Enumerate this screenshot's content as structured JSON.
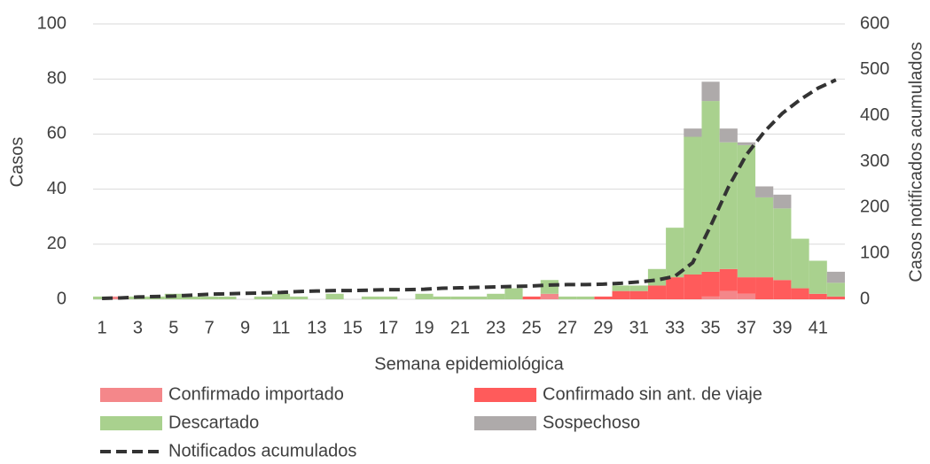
{
  "chart_data": {
    "type": "bar",
    "stacked": true,
    "x_label": "Semana epidemiológica",
    "y_label": "Casos",
    "y2_label": "Casos notificados acumulados",
    "categories": [
      1,
      null,
      3,
      null,
      5,
      null,
      7,
      null,
      9,
      null,
      11,
      null,
      13,
      null,
      15,
      null,
      17,
      null,
      19,
      null,
      21,
      null,
      23,
      null,
      25,
      null,
      27,
      null,
      29,
      null,
      31,
      null,
      33,
      null,
      35,
      null,
      37,
      null,
      39,
      null,
      41,
      null
    ],
    "series": [
      {
        "name": "Confirmado importado",
        "color": "#f4878a",
        "values": [
          0,
          1,
          0,
          0,
          0,
          0,
          0,
          0,
          0,
          0,
          0,
          0,
          0,
          0,
          0,
          0,
          0,
          0,
          0,
          0,
          0,
          0,
          0,
          0,
          0,
          2,
          0,
          0,
          0,
          0,
          0,
          0,
          0,
          0,
          1,
          3,
          2,
          0,
          0,
          0,
          0,
          0
        ]
      },
      {
        "name": "Confirmado sin ant. de viaje",
        "color": "#ff5b5b",
        "values": [
          0,
          0,
          0,
          0,
          0,
          0,
          0,
          0,
          0,
          0,
          0,
          0,
          0,
          0,
          0,
          0,
          0,
          0,
          0,
          0,
          0,
          0,
          0,
          0,
          1,
          0,
          0,
          0,
          1,
          3,
          3,
          5,
          8,
          9,
          9,
          8,
          6,
          8,
          7,
          4,
          2,
          1
        ]
      },
      {
        "name": "Descartado",
        "color": "#a9d18e",
        "values": [
          1,
          0,
          1,
          1,
          2,
          1,
          1,
          1,
          0,
          1,
          2,
          1,
          0,
          2,
          0,
          1,
          1,
          0,
          2,
          1,
          1,
          1,
          2,
          4,
          0,
          5,
          1,
          1,
          0,
          2,
          2,
          6,
          18,
          50,
          62,
          46,
          48,
          29,
          26,
          18,
          12,
          5
        ]
      },
      {
        "name": "Sospechoso",
        "color": "#aeaaaa",
        "values": [
          0,
          0,
          0,
          0,
          0,
          0,
          0,
          0,
          0,
          0,
          0,
          0,
          0,
          0,
          0,
          0,
          0,
          0,
          0,
          0,
          0,
          0,
          0,
          0,
          0,
          0,
          0,
          0,
          0,
          0,
          0,
          0,
          0,
          3,
          7,
          5,
          1,
          4,
          5,
          0,
          0,
          4
        ]
      },
      {
        "name": "Notificados acumulados",
        "color": "#333333",
        "type": "line",
        "axis": "y2",
        "line_style": "dashed",
        "values": [
          2,
          3,
          5,
          6,
          7,
          9,
          11,
          12,
          13,
          14,
          15,
          17,
          18,
          19,
          19,
          20,
          21,
          21,
          22,
          24,
          25,
          26,
          27,
          28,
          29,
          31,
          32,
          32,
          33,
          35,
          38,
          42,
          50,
          80,
          160,
          245,
          315,
          365,
          405,
          435,
          460,
          478
        ]
      }
    ],
    "ylim": [
      0,
      100
    ],
    "yticks": [
      0,
      20,
      40,
      60,
      80,
      100
    ],
    "y2lim": [
      0,
      600
    ],
    "y2ticks": [
      0,
      100,
      200,
      300,
      400,
      500,
      600
    ],
    "grid": true,
    "legend": "bottom"
  }
}
